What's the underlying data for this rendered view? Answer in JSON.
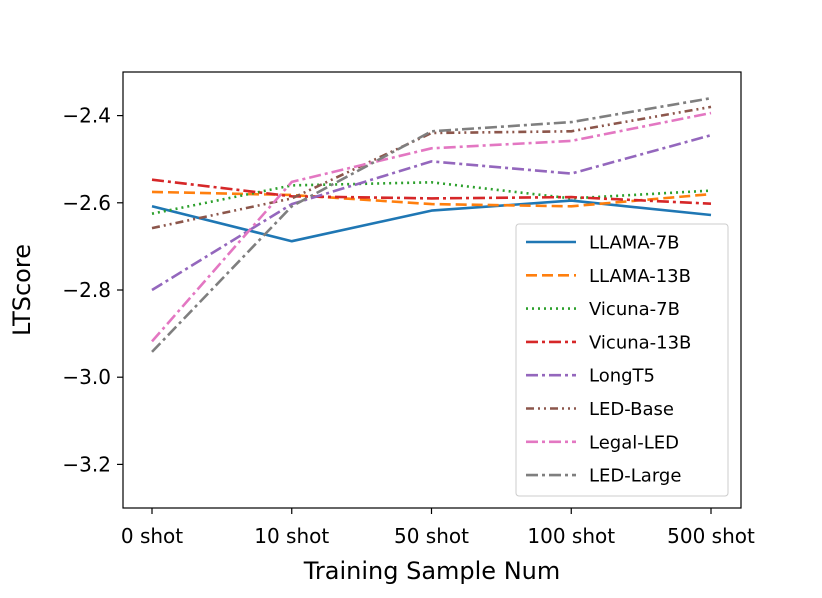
{
  "chart_data": {
    "type": "line",
    "title": "",
    "xlabel": "Training Sample Num",
    "ylabel": "LTScore",
    "categories": [
      "0 shot",
      "10 shot",
      "50 shot",
      "100 shot",
      "500 shot"
    ],
    "ylim": [
      -3.3,
      -2.3
    ],
    "yticks": [
      -3.2,
      -3.0,
      -2.8,
      -2.6,
      -2.4
    ],
    "ytick_labels": [
      "−3.2",
      "−3.0",
      "−2.8",
      "−2.6",
      "−2.4"
    ],
    "grid": false,
    "legend_position": "lower-right",
    "series": [
      {
        "name": "LLAMA-7B",
        "color": "#1f77b4",
        "style": "solid",
        "values": [
          -2.608,
          -2.688,
          -2.618,
          -2.595,
          -2.628
        ]
      },
      {
        "name": "LLAMA-13B",
        "color": "#ff7f0e",
        "style": "dashed",
        "values": [
          -2.575,
          -2.582,
          -2.603,
          -2.608,
          -2.58
        ]
      },
      {
        "name": "Vicuna-7B",
        "color": "#2ca02c",
        "style": "dotted",
        "values": [
          -2.625,
          -2.56,
          -2.553,
          -2.59,
          -2.572
        ]
      },
      {
        "name": "Vicuna-13B",
        "color": "#d62728",
        "style": "dashdot",
        "values": [
          -2.547,
          -2.585,
          -2.59,
          -2.587,
          -2.602
        ]
      },
      {
        "name": "LongT5",
        "color": "#9467bd",
        "style": "dashdot",
        "values": [
          -2.8,
          -2.603,
          -2.505,
          -2.533,
          -2.445
        ]
      },
      {
        "name": "LED-Base",
        "color": "#8c564b",
        "style": "dashdotdot",
        "values": [
          -2.658,
          -2.59,
          -2.44,
          -2.436,
          -2.38
        ]
      },
      {
        "name": "Legal-LED",
        "color": "#e377c2",
        "style": "dashdot",
        "values": [
          -2.918,
          -2.552,
          -2.475,
          -2.458,
          -2.394
        ]
      },
      {
        "name": "LED-Large",
        "color": "#7f7f7f",
        "style": "dashdot",
        "values": [
          -2.942,
          -2.608,
          -2.436,
          -2.415,
          -2.36
        ]
      }
    ]
  }
}
